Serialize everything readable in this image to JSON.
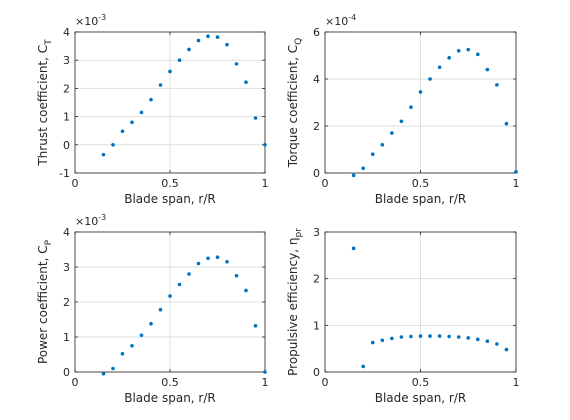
{
  "chart_data": [
    {
      "type": "scatter",
      "xlabel": "Blade span, r/R",
      "ylabel_text": "Thrust coefficient, C",
      "ylabel_sub": "T",
      "exponent_label": "×10",
      "exponent_power": "-3",
      "xlim": [
        0,
        1
      ],
      "ylim": [
        -1,
        4
      ],
      "xticks": [
        0,
        0.5,
        1
      ],
      "xtick_labels": [
        "0",
        "0.5",
        "1"
      ],
      "yticks": [
        -1,
        0,
        1,
        2,
        3,
        4
      ],
      "ytick_labels": [
        "-1",
        "0",
        "1",
        "2",
        "3",
        "4"
      ],
      "grid": true,
      "color": "#0072BD",
      "x": [
        0.15,
        0.2,
        0.25,
        0.3,
        0.35,
        0.4,
        0.45,
        0.5,
        0.55,
        0.6,
        0.65,
        0.7,
        0.75,
        0.8,
        0.85,
        0.9,
        0.95,
        1.0
      ],
      "y": [
        -0.35,
        0.0,
        0.48,
        0.8,
        1.15,
        1.6,
        2.12,
        2.6,
        3.0,
        3.38,
        3.7,
        3.85,
        3.82,
        3.55,
        2.87,
        2.22,
        0.95,
        0.0
      ]
    },
    {
      "type": "scatter",
      "xlabel": "Blade span, r/R",
      "ylabel_text": "Torque coefficient, C",
      "ylabel_sub": "Q",
      "exponent_label": "×10",
      "exponent_power": "-4",
      "xlim": [
        0,
        1
      ],
      "ylim": [
        0,
        6
      ],
      "xticks": [
        0,
        0.5,
        1
      ],
      "xtick_labels": [
        "0",
        "0.5",
        "1"
      ],
      "yticks": [
        0,
        2,
        4,
        6
      ],
      "ytick_labels": [
        "0",
        "2",
        "4",
        "6"
      ],
      "grid": true,
      "color": "#0072BD",
      "x": [
        0.15,
        0.2,
        0.25,
        0.3,
        0.35,
        0.4,
        0.45,
        0.5,
        0.55,
        0.6,
        0.65,
        0.7,
        0.75,
        0.8,
        0.85,
        0.9,
        0.95,
        1.0
      ],
      "y": [
        -0.1,
        0.2,
        0.8,
        1.2,
        1.7,
        2.2,
        2.8,
        3.45,
        4.0,
        4.5,
        4.9,
        5.2,
        5.25,
        5.05,
        4.4,
        3.75,
        2.1,
        0.05
      ]
    },
    {
      "type": "scatter",
      "xlabel": "Blade span, r/R",
      "ylabel_text": "Power coefficient, C",
      "ylabel_sub": "P",
      "exponent_label": "×10",
      "exponent_power": "-3",
      "xlim": [
        0,
        1
      ],
      "ylim": [
        0,
        4
      ],
      "xticks": [
        0,
        0.5,
        1
      ],
      "xtick_labels": [
        "0",
        "0.5",
        "1"
      ],
      "yticks": [
        0,
        1,
        2,
        3,
        4
      ],
      "ytick_labels": [
        "0",
        "1",
        "2",
        "3",
        "4"
      ],
      "grid": true,
      "color": "#0072BD",
      "x": [
        0.15,
        0.2,
        0.25,
        0.3,
        0.35,
        0.4,
        0.45,
        0.5,
        0.55,
        0.6,
        0.65,
        0.7,
        0.75,
        0.8,
        0.85,
        0.9,
        0.95,
        1.0
      ],
      "y": [
        -0.05,
        0.1,
        0.52,
        0.75,
        1.05,
        1.38,
        1.78,
        2.17,
        2.5,
        2.8,
        3.1,
        3.25,
        3.28,
        3.15,
        2.75,
        2.33,
        1.32,
        0.0
      ]
    },
    {
      "type": "scatter",
      "xlabel": "Blade span, r/R",
      "ylabel_text": "Propulsive efficiency, η",
      "ylabel_sub": "pr",
      "exponent_label": "",
      "exponent_power": "",
      "xlim": [
        0,
        1
      ],
      "ylim": [
        0,
        3
      ],
      "xticks": [
        0,
        0.5,
        1
      ],
      "xtick_labels": [
        "0",
        "0.5",
        "1"
      ],
      "yticks": [
        0,
        1,
        2,
        3
      ],
      "ytick_labels": [
        "0",
        "1",
        "2",
        "3"
      ],
      "grid": true,
      "color": "#0072BD",
      "x": [
        0.15,
        0.2,
        0.25,
        0.3,
        0.35,
        0.4,
        0.45,
        0.5,
        0.55,
        0.6,
        0.65,
        0.7,
        0.75,
        0.8,
        0.85,
        0.9,
        0.95
      ],
      "y": [
        2.65,
        0.12,
        0.63,
        0.68,
        0.72,
        0.75,
        0.76,
        0.77,
        0.77,
        0.77,
        0.76,
        0.75,
        0.73,
        0.7,
        0.66,
        0.6,
        0.48
      ]
    }
  ]
}
